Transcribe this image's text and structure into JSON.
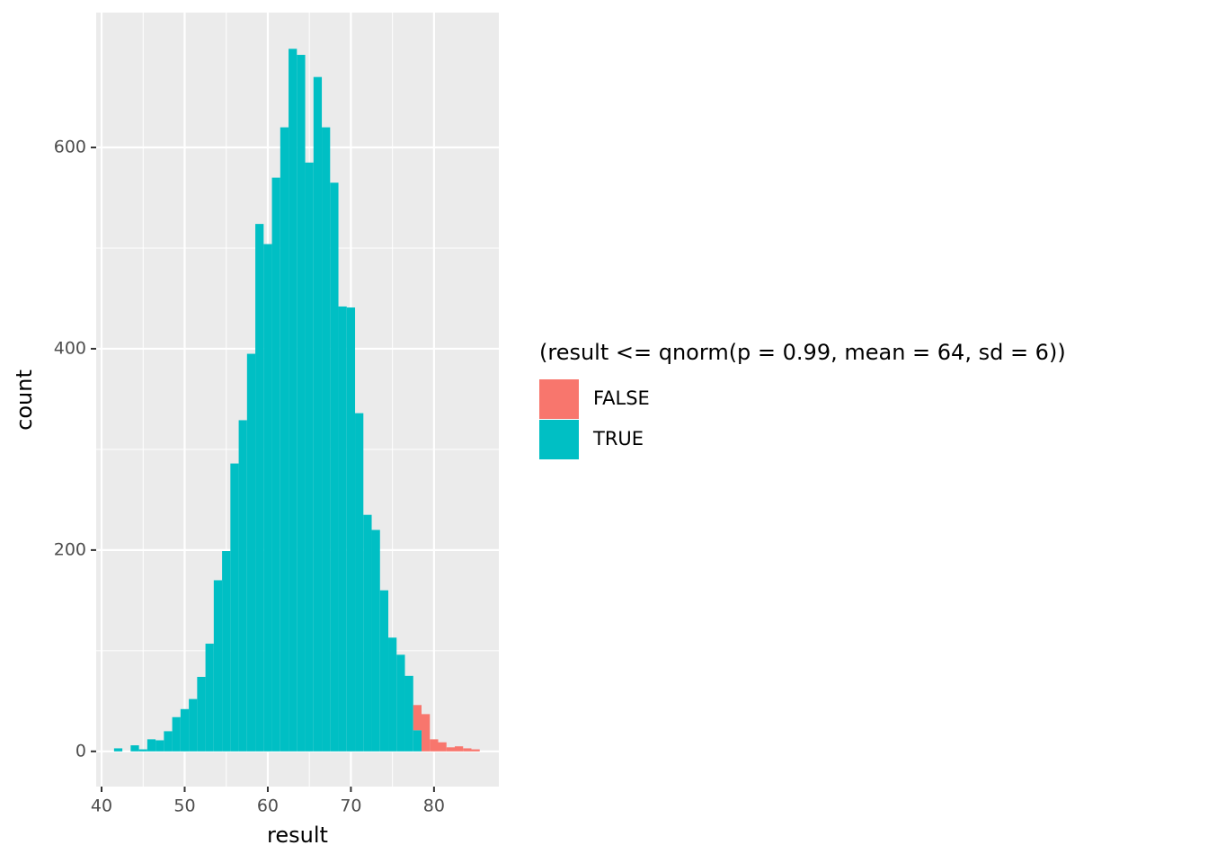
{
  "chart_data": {
    "type": "histogram",
    "x_label": "result",
    "y_label": "count",
    "bins": [
      41.5,
      42.5,
      43.5,
      44.5,
      45.5,
      46.5,
      47.5,
      48.5,
      49.5,
      50.5,
      51.5,
      52.5,
      53.5,
      54.5,
      55.5,
      56.5,
      57.5,
      58.5,
      59.5,
      60.5,
      61.5,
      62.5,
      63.5,
      64.5,
      65.5,
      66.5,
      67.5,
      68.5,
      69.5,
      70.5,
      71.5,
      72.5,
      73.5,
      74.5,
      75.5,
      76.5,
      77.5,
      78.5,
      79.5,
      80.5,
      81.5,
      82.5,
      83.5,
      84.5,
      85.5
    ],
    "stacked": true,
    "series": [
      {
        "name": "FALSE",
        "color": "#F8766D",
        "values": [
          0,
          0,
          0,
          0,
          0,
          0,
          0,
          0,
          0,
          0,
          0,
          0,
          0,
          0,
          0,
          0,
          0,
          0,
          0,
          0,
          0,
          0,
          0,
          0,
          0,
          0,
          0,
          0,
          0,
          0,
          0,
          0,
          0,
          0,
          0,
          0,
          25,
          37,
          12,
          9,
          4,
          5,
          3,
          2
        ]
      },
      {
        "name": "TRUE",
        "color": "#00BFC4",
        "values": [
          3,
          0,
          6,
          2,
          12,
          11,
          20,
          34,
          42,
          52,
          74,
          107,
          170,
          199,
          286,
          329,
          395,
          524,
          504,
          570,
          620,
          698,
          692,
          585,
          670,
          620,
          565,
          442,
          441,
          336,
          235,
          220,
          160,
          113,
          96,
          75,
          21,
          0,
          0,
          0,
          0,
          0,
          0,
          0
        ]
      }
    ],
    "legend_title": "(result <= qnorm(p = 0.99, mean = 64, sd = 6))",
    "legend_position": "right",
    "xlim": [
      39.35,
      87.8
    ],
    "ylim": [
      -35,
      734
    ],
    "xticks": [
      40,
      50,
      60,
      70,
      80
    ],
    "yticks": [
      0,
      200,
      400,
      600
    ],
    "grid": true,
    "minor_grid": true
  }
}
